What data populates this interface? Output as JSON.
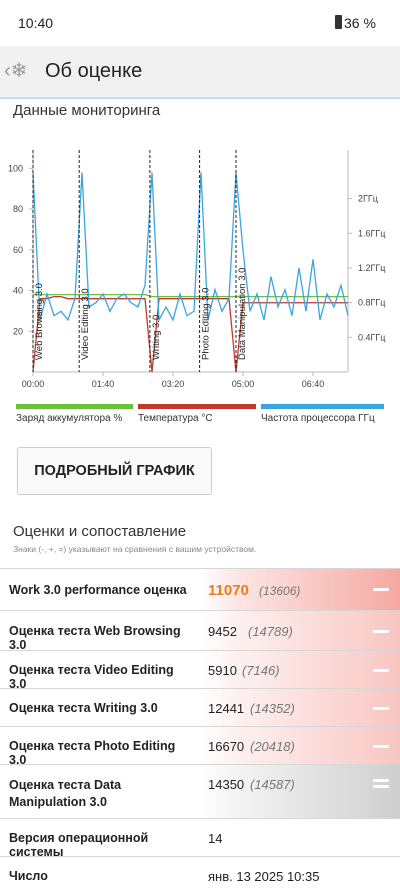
{
  "status_bar": {
    "time": "10:40",
    "battery": "36 %"
  },
  "header": {
    "title": "Об оценке"
  },
  "monitoring": {
    "title": "Данные мониторинга"
  },
  "chart_data": {
    "type": "line",
    "x": [
      0,
      10,
      20,
      30,
      40,
      50,
      60,
      70,
      80,
      90,
      100,
      110,
      120,
      130,
      140,
      150,
      160,
      170,
      180,
      190,
      200,
      210,
      220,
      230,
      240,
      250,
      260,
      270,
      280,
      290,
      300,
      310,
      320,
      330,
      340,
      350,
      360,
      370,
      380,
      390,
      400,
      410,
      420,
      430,
      440,
      450
    ],
    "xlim": [
      0,
      450
    ],
    "xticks": [
      {
        "value": 0,
        "label": "00:00"
      },
      {
        "value": 100,
        "label": "01:40"
      },
      {
        "value": 200,
        "label": "03:20"
      },
      {
        "value": 300,
        "label": "05:00"
      },
      {
        "value": 400,
        "label": "06:40"
      }
    ],
    "ylim": [
      0,
      109
    ],
    "yticks": [
      20,
      40,
      60,
      80,
      100
    ],
    "y2lim": [
      0,
      2.56
    ],
    "y2ticks": [
      {
        "value": 0.4,
        "label": "0.4ГГц"
      },
      {
        "value": 0.8,
        "label": "0.8ГГц"
      },
      {
        "value": 1.2,
        "label": "1.2ГГц"
      },
      {
        "value": 1.6,
        "label": "1.6ГГц"
      },
      {
        "value": 2,
        "label": "2ГГц"
      }
    ],
    "markers": [
      {
        "x": 0,
        "label": "Web Browsing 3.0"
      },
      {
        "x": 66,
        "label": "Video Editing 3.0"
      },
      {
        "x": 167,
        "label": "Writing 3.0"
      },
      {
        "x": 238,
        "label": "Photo Editing 3.0"
      },
      {
        "x": 290,
        "label": "Data Manipulation 3.0"
      }
    ],
    "series": [
      {
        "name": "Заряд аккумулятора %",
        "color": "#6cbf3c",
        "values": [
          38,
          38,
          38,
          38,
          38,
          38,
          38,
          38,
          38,
          38,
          38,
          38,
          38,
          38,
          38,
          38,
          38,
          37,
          37,
          37,
          37,
          37,
          37,
          37,
          37,
          37,
          37,
          37,
          37,
          37,
          37,
          37,
          37,
          37,
          37,
          37,
          37,
          37,
          37,
          37,
          37,
          37,
          37,
          37,
          37,
          37
        ]
      },
      {
        "name": "Температура °C",
        "color": "#c0392b",
        "values": [
          0,
          36,
          36,
          37,
          37,
          36,
          36,
          36,
          36,
          36,
          36,
          36,
          36,
          36,
          36,
          36,
          36,
          0,
          36,
          36,
          36,
          36,
          36,
          36,
          36,
          36,
          36,
          36,
          36,
          0,
          34,
          34,
          34,
          34,
          34,
          34,
          34,
          34,
          34,
          34,
          34,
          34,
          34,
          34,
          34,
          34
        ]
      },
      {
        "name": "Частота процессора ГГц",
        "color": "#3aa6dd",
        "axis": "y2",
        "values": [
          2.3,
          0.6,
          0.9,
          0.65,
          0.7,
          0.6,
          0.85,
          2.3,
          0.75,
          0.8,
          0.9,
          0.7,
          0.85,
          0.9,
          0.8,
          0.75,
          1.0,
          2.3,
          0.6,
          0.75,
          0.6,
          0.9,
          0.65,
          0.7,
          2.3,
          0.6,
          0.95,
          0.7,
          0.85,
          2.3,
          1.4,
          0.7,
          0.9,
          0.6,
          1.1,
          0.75,
          0.95,
          0.65,
          1.2,
          0.7,
          1.3,
          0.6,
          0.9,
          0.75,
          1.0,
          0.65
        ]
      }
    ]
  },
  "button": "ПОДРОБНЫЙ ГРАФИК",
  "scores": {
    "title": "Оценки и сопоставление",
    "note": "Знаки (-, +, =) указывают на сравнения с вашим устройством.",
    "rows": [
      [
        "Work 3.0 performance оценка",
        11070,
        "(13606)"
      ],
      [
        "Оценка теста Web Browsing 3.0",
        9452,
        "(14789)"
      ],
      [
        "Оценка теста Video Editing 3.0",
        5910,
        "(7146)"
      ],
      [
        "Оценка теста Writing 3.0",
        12441,
        "(14352)"
      ],
      [
        "Оценка теста Photo Editing 3.0",
        16670,
        "(20418)"
      ],
      [
        "Оценка теста Data Manipulation 3.0",
        14350,
        "(14587)"
      ]
    ],
    "info": [
      [
        "Версия операционной системы",
        14
      ],
      [
        "Число",
        "янв. 13 2025 10:35"
      ]
    ]
  }
}
